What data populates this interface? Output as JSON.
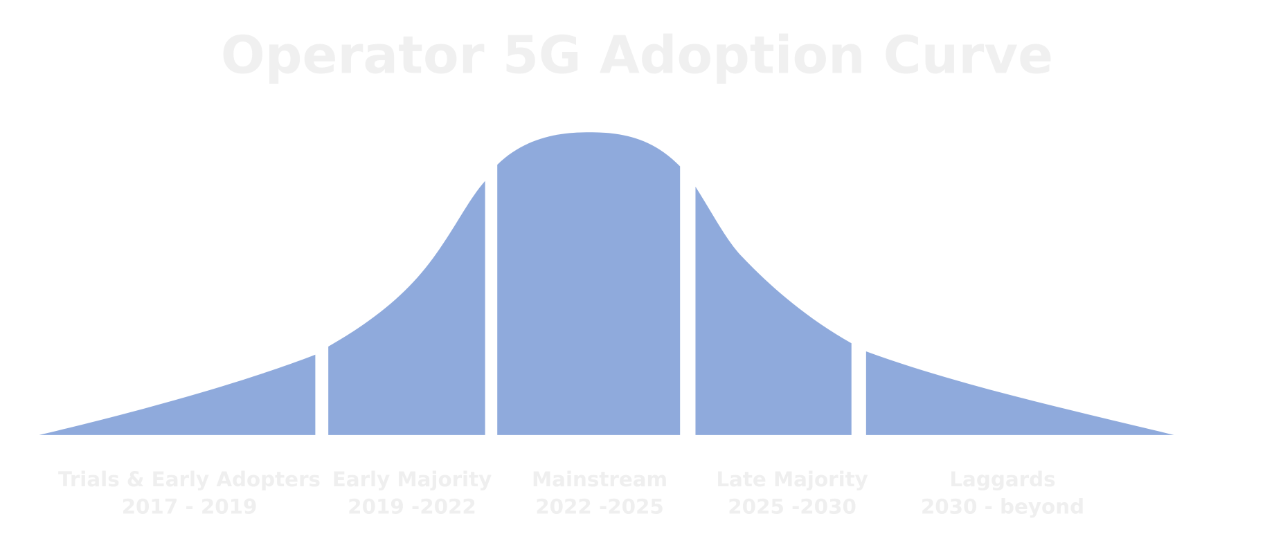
{
  "title": "Operator 5G Adoption Curve",
  "segments": [
    {
      "label": "Trials & Early Adopters",
      "period": "2017 - 2019"
    },
    {
      "label": "Early Majority",
      "period": "2019 -2022"
    },
    {
      "label": "Mainstream",
      "period": "2022 -2025"
    },
    {
      "label": "Late Majority",
      "period": "2025 -2030"
    },
    {
      "label": "Laggards",
      "period": "2030 - beyond"
    }
  ]
}
